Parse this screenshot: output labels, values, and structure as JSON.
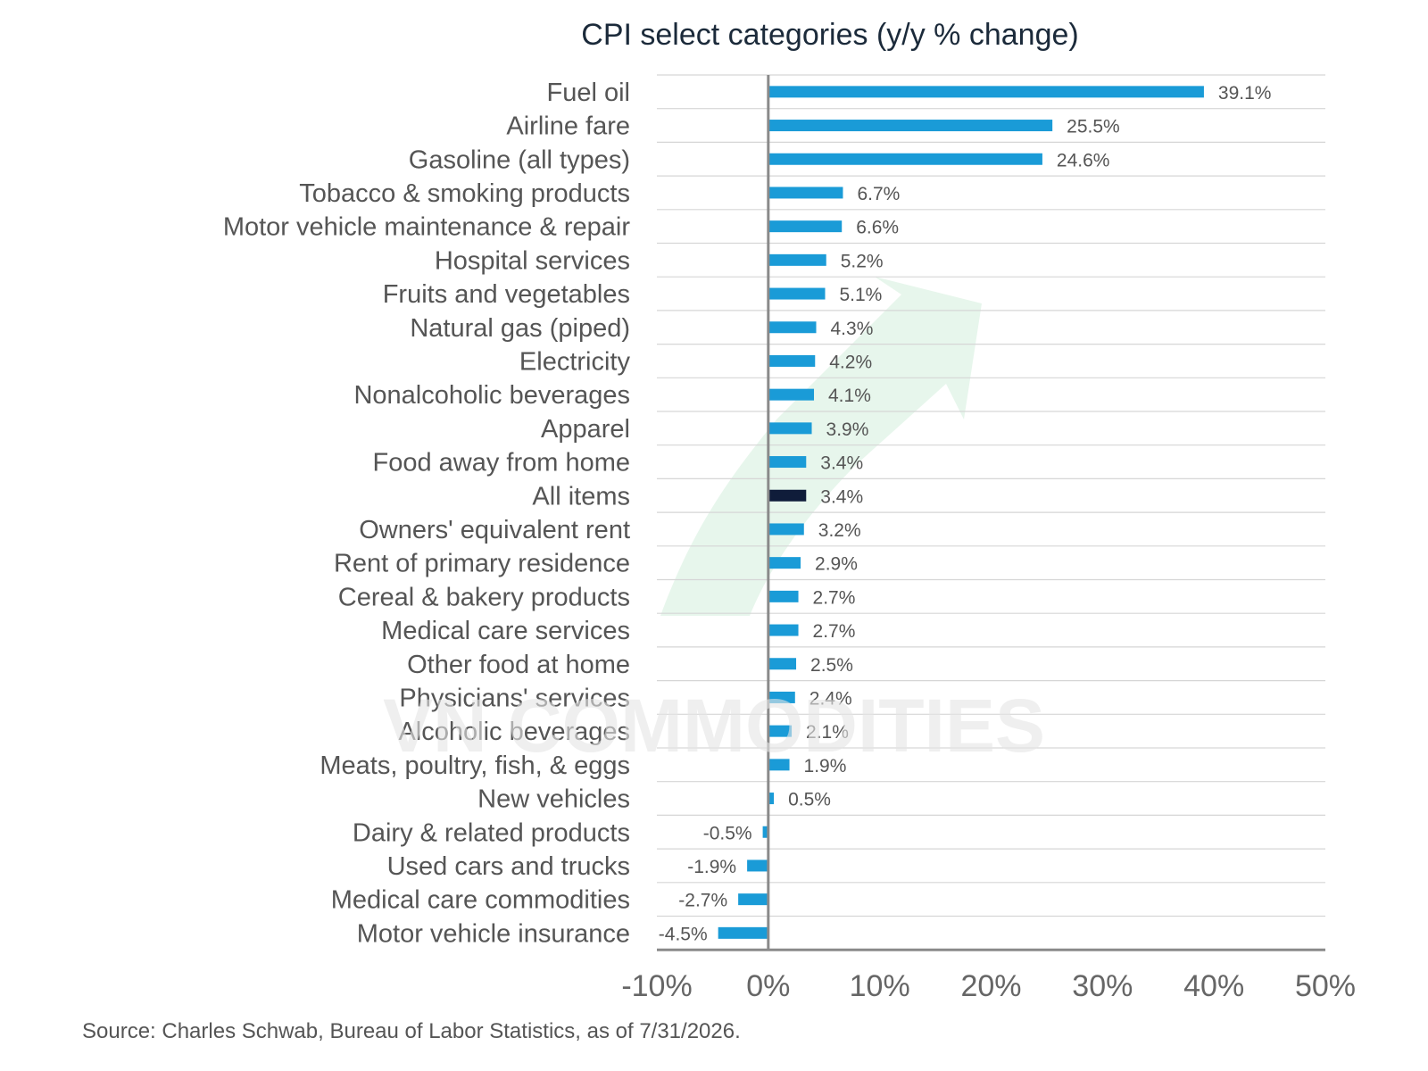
{
  "watermark": "VN COMMODITIES",
  "colors": {
    "bar": "#1a9bd7",
    "highlight_bar": "#0f1c3a",
    "gridline": "#d6d6d6",
    "zero_line": "#8a8a8a",
    "arrow_watermark": "#e6f6ec"
  },
  "chart_data": {
    "type": "bar",
    "orientation": "horizontal",
    "title": "CPI select categories (y/y % change)",
    "source": "Source: Charles Schwab, Bureau of Labor Statistics, as of 7/31/2026.",
    "xlim": [
      -10,
      50
    ],
    "xticks": [
      -10,
      0,
      10,
      20,
      30,
      40,
      50
    ],
    "xtick_labels": [
      "-10%",
      "0%",
      "10%",
      "20%",
      "30%",
      "40%",
      "50%"
    ],
    "highlight_category": "All items",
    "grid": true,
    "categories": [
      "Fuel oil",
      "Airline fare",
      "Gasoline (all types)",
      "Tobacco & smoking products",
      "Motor vehicle maintenance & repair",
      "Hospital services",
      "Fruits and vegetables",
      "Natural gas (piped)",
      "Electricity",
      "Nonalcoholic beverages",
      "Apparel",
      "Food away from home",
      "All items",
      "Owners' equivalent rent",
      "Rent of primary residence",
      "Cereal & bakery products",
      "Medical care services",
      "Other food at home",
      "Physicians' services",
      "Alcoholic beverages",
      "Meats, poultry, fish, & eggs",
      "New vehicles",
      "Dairy & related products",
      "Used cars and trucks",
      "Medical care commodities",
      "Motor vehicle insurance"
    ],
    "values": [
      39.1,
      25.5,
      24.6,
      6.7,
      6.6,
      5.2,
      5.1,
      4.3,
      4.2,
      4.1,
      3.9,
      3.4,
      3.4,
      3.2,
      2.9,
      2.7,
      2.7,
      2.5,
      2.4,
      2.1,
      1.9,
      0.5,
      -0.5,
      -1.9,
      -2.7,
      -4.5
    ],
    "data_labels": [
      "39.1%",
      "25.5%",
      "24.6%",
      "6.7%",
      "6.6%",
      "5.2%",
      "5.1%",
      "4.3%",
      "4.2%",
      "4.1%",
      "3.9%",
      "3.4%",
      "3.4%",
      "3.2%",
      "2.9%",
      "2.7%",
      "2.7%",
      "2.5%",
      "2.4%",
      "2.1%",
      "1.9%",
      "0.5%",
      "-0.5%",
      "-1.9%",
      "-2.7%",
      "-4.5%"
    ]
  }
}
